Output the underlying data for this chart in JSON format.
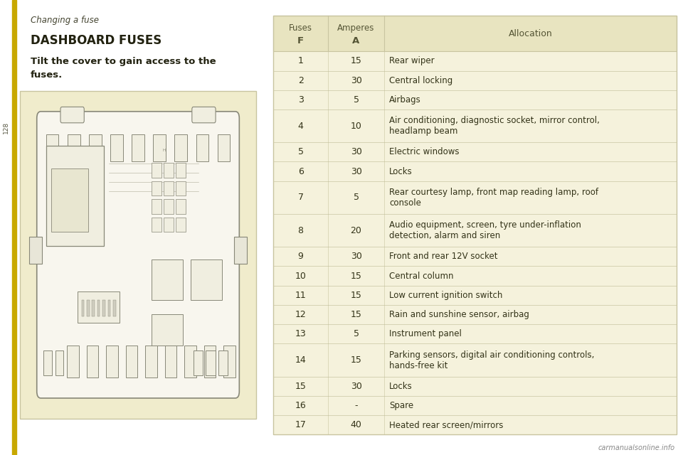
{
  "page_bg": "#ffffff",
  "left_panel_bg": "#ffffff",
  "header_title": "Changing a fuse",
  "section_title": "DASHBOARD FUSES",
  "page_number": "128",
  "body_text_line1": "Tilt the cover to gain access to the",
  "body_text_line2": "fuses.",
  "table_header_bg": "#e8e4c0",
  "table_body_bg": "#f5f2dc",
  "table_border": "#c8c4a0",
  "header_text_color": "#555535",
  "cell_text_color": "#333318",
  "accent_color": "#c8a800",
  "img_bg": "#f0eccc",
  "img_border": "#c8c4a0",
  "fuse_line_color": "#aaaaaa",
  "fuses": [
    {
      "f": "1",
      "a": "15",
      "allocation": "Rear wiper",
      "multiline": false
    },
    {
      "f": "2",
      "a": "30",
      "allocation": "Central locking",
      "multiline": false
    },
    {
      "f": "3",
      "a": "5",
      "allocation": "Airbags",
      "multiline": false
    },
    {
      "f": "4",
      "a": "10",
      "allocation": "Air conditioning, diagnostic socket, mirror control,\nheadlamp beam",
      "multiline": true
    },
    {
      "f": "5",
      "a": "30",
      "allocation": "Electric windows",
      "multiline": false
    },
    {
      "f": "6",
      "a": "30",
      "allocation": "Locks",
      "multiline": false
    },
    {
      "f": "7",
      "a": "5",
      "allocation": "Rear courtesy lamp, front map reading lamp, roof\nconsole",
      "multiline": true
    },
    {
      "f": "8",
      "a": "20",
      "allocation": "Audio equipment, screen, tyre under-inflation\ndetection, alarm and siren",
      "multiline": true
    },
    {
      "f": "9",
      "a": "30",
      "allocation": "Front and rear 12V socket",
      "multiline": false
    },
    {
      "f": "10",
      "a": "15",
      "allocation": "Central column",
      "multiline": false
    },
    {
      "f": "11",
      "a": "15",
      "allocation": "Low current ignition switch",
      "multiline": false
    },
    {
      "f": "12",
      "a": "15",
      "allocation": "Rain and sunshine sensor, airbag",
      "multiline": false
    },
    {
      "f": "13",
      "a": "5",
      "allocation": "Instrument panel",
      "multiline": false
    },
    {
      "f": "14",
      "a": "15",
      "allocation": "Parking sensors, digital air conditioning controls,\nhands-free kit",
      "multiline": true
    },
    {
      "f": "15",
      "a": "30",
      "allocation": "Locks",
      "multiline": false
    },
    {
      "f": "16",
      "a": "-",
      "allocation": "Spare",
      "multiline": false
    },
    {
      "f": "17",
      "a": "40",
      "allocation": "Heated rear screen/mirrors",
      "multiline": false
    }
  ],
  "col_header_fuses_line1": "Fuses",
  "col_header_fuses_line2": "F",
  "col_header_amperes_line1": "Amperes",
  "col_header_amperes_line2": "A",
  "col_header_allocation": "Allocation",
  "watermark": "carmanualsonline.info"
}
